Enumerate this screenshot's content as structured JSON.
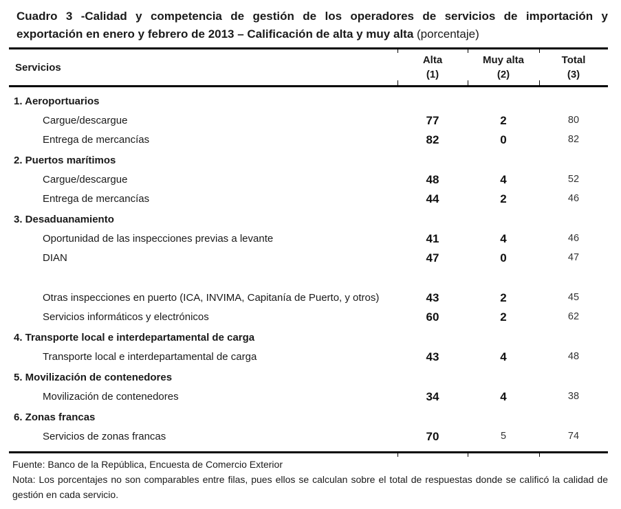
{
  "title": {
    "line1": "Cuadro 3 -Calidad y competencia de gestión de los operadores de servicios de importación y",
    "line2_bold": "exportación en enero y febrero de 2013 – Calificación de alta y muy alta",
    "line2_regular": "(porcentaje)"
  },
  "table": {
    "header": {
      "servicios": "Servicios",
      "alta_l1": "Alta",
      "alta_l2": "(1)",
      "muy_l1": "Muy alta",
      "muy_l2": "(2)",
      "total_l1": "Total",
      "total_l2": "(3)"
    },
    "rows": [
      {
        "type": "section",
        "label": "1. Aeroportuarios"
      },
      {
        "type": "item",
        "label": "Cargue/descargue",
        "alta": "77",
        "muy_alta": "2",
        "total": "80"
      },
      {
        "type": "item",
        "label": "Entrega de mercancías",
        "alta": "82",
        "muy_alta": "0",
        "total": "82"
      },
      {
        "type": "section",
        "label": "2. Puertos marítimos"
      },
      {
        "type": "item",
        "label": "Cargue/descargue",
        "alta": "48",
        "muy_alta": "4",
        "total": "52"
      },
      {
        "type": "item",
        "label": "Entrega de mercancías",
        "alta": "44",
        "muy_alta": "2",
        "total": "46"
      },
      {
        "type": "section",
        "label": "3. Desaduanamiento"
      },
      {
        "type": "item",
        "label": "Oportunidad de las inspecciones previas a levante",
        "alta": "41",
        "muy_alta": "4",
        "total": "46"
      },
      {
        "type": "item",
        "label": "DIAN",
        "alta": "47",
        "muy_alta": "0",
        "total": "47"
      },
      {
        "type": "item",
        "twoline": true,
        "label": "Otras inspecciones en puerto (ICA, INVIMA, Capitanía de Puerto, y otros)",
        "alta": "43",
        "muy_alta": "2",
        "total": "45"
      },
      {
        "type": "item",
        "label": "Servicios informáticos y electrónicos",
        "alta": "60",
        "muy_alta": "2",
        "total": "62"
      },
      {
        "type": "section",
        "label": "4. Transporte local e interdepartamental de carga"
      },
      {
        "type": "item",
        "label": "Transporte local e interdepartamental de carga",
        "alta": "43",
        "muy_alta": "4",
        "total": "48"
      },
      {
        "type": "section",
        "label": "5. Movilización de contenedores"
      },
      {
        "type": "item",
        "label": "Movilización de contenedores",
        "alta": "34",
        "muy_alta": "4",
        "total": "38"
      },
      {
        "type": "section",
        "label": "6. Zonas francas"
      },
      {
        "type": "item",
        "label": "Servicios de zonas francas",
        "alta": "70",
        "muy_alta": "5",
        "muy_small": true,
        "total": "74"
      }
    ]
  },
  "footer": {
    "fuente": "Fuente: Banco de la República, Encuesta de Comercio Exterior",
    "nota": "Nota: Los porcentajes no son comparables entre filas, pues ellos se calculan sobre el total de respuestas donde se calificó la calidad de gestión en cada servicio."
  },
  "colors": {
    "text": "#1a1a1a",
    "rule": "#000000",
    "background": "#ffffff"
  }
}
